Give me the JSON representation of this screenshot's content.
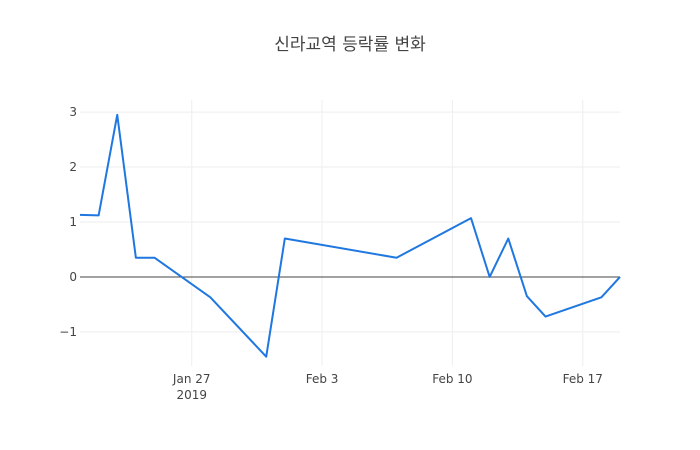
{
  "chart_data": {
    "type": "line",
    "title": "신라교역 등락률 변화",
    "xlabel": "",
    "ylabel": "",
    "x_range": [
      "2019-01-21",
      "2019-02-19"
    ],
    "ylim": [
      -1.62,
      3.22
    ],
    "grid": true,
    "x_ticks": [
      {
        "date": "2019-01-27",
        "label": "Jan 27",
        "sublabel": "2019"
      },
      {
        "date": "2019-02-03",
        "label": "Feb 3",
        "sublabel": ""
      },
      {
        "date": "2019-02-10",
        "label": "Feb 10",
        "sublabel": ""
      },
      {
        "date": "2019-02-17",
        "label": "Feb 17",
        "sublabel": ""
      }
    ],
    "y_ticks": [
      {
        "value": 3,
        "label": "3"
      },
      {
        "value": 2,
        "label": "2"
      },
      {
        "value": 1,
        "label": "1"
      },
      {
        "value": 0,
        "label": "0"
      },
      {
        "value": -1,
        "label": "−1"
      }
    ],
    "series": [
      {
        "name": "",
        "color": "#1f77e0",
        "points": [
          {
            "x": "2019-01-21",
            "y": 1.13
          },
          {
            "x": "2019-01-22",
            "y": 1.12
          },
          {
            "x": "2019-01-23",
            "y": 2.95
          },
          {
            "x": "2019-01-24",
            "y": 0.35
          },
          {
            "x": "2019-01-25",
            "y": 0.35
          },
          {
            "x": "2019-01-28",
            "y": -0.37
          },
          {
            "x": "2019-01-31",
            "y": -1.45
          },
          {
            "x": "2019-02-01",
            "y": 0.7
          },
          {
            "x": "2019-02-07",
            "y": 0.35
          },
          {
            "x": "2019-02-11",
            "y": 1.07
          },
          {
            "x": "2019-02-12",
            "y": 0.0
          },
          {
            "x": "2019-02-13",
            "y": 0.7
          },
          {
            "x": "2019-02-14",
            "y": -0.35
          },
          {
            "x": "2019-02-15",
            "y": -0.72
          },
          {
            "x": "2019-02-18",
            "y": -0.37
          },
          {
            "x": "2019-02-19",
            "y": 0.0
          }
        ]
      }
    ]
  }
}
